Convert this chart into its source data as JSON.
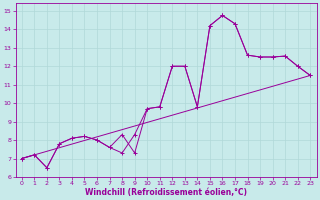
{
  "xlabel": "Windchill (Refroidissement éolien,°C)",
  "bg_color": "#c8eaea",
  "grid_color": "#b0d8d8",
  "line_color": "#990099",
  "xlim": [
    -0.5,
    23.5
  ],
  "ylim": [
    6,
    15.4
  ],
  "xticks": [
    0,
    1,
    2,
    3,
    4,
    5,
    6,
    7,
    8,
    9,
    10,
    11,
    12,
    13,
    14,
    15,
    16,
    17,
    18,
    19,
    20,
    21,
    22,
    23
  ],
  "yticks": [
    6,
    7,
    8,
    9,
    10,
    11,
    12,
    13,
    14,
    15
  ],
  "line1_x": [
    0,
    1,
    2,
    3,
    4,
    5,
    6,
    7,
    8,
    9,
    10,
    11,
    12,
    13,
    14,
    15,
    16,
    17,
    18,
    19,
    20,
    21,
    22,
    23
  ],
  "line1_y": [
    7.0,
    7.2,
    6.5,
    7.8,
    8.1,
    8.2,
    8.0,
    7.6,
    7.3,
    8.3,
    9.7,
    9.8,
    12.0,
    12.0,
    9.8,
    14.2,
    14.75,
    14.3,
    12.6,
    12.5,
    12.5,
    12.55,
    12.0,
    11.5
  ],
  "line2_x": [
    0,
    1,
    2,
    3,
    4,
    5,
    6,
    7,
    8,
    9,
    10,
    11,
    12,
    13,
    14,
    15,
    16,
    17,
    18,
    19,
    20,
    21,
    22,
    23
  ],
  "line2_y": [
    7.0,
    7.2,
    6.5,
    7.8,
    8.1,
    8.2,
    8.0,
    7.6,
    8.3,
    7.3,
    9.7,
    9.8,
    12.0,
    12.0,
    9.8,
    14.2,
    14.75,
    14.3,
    12.6,
    12.5,
    12.5,
    12.55,
    12.0,
    11.5
  ],
  "line3_x": [
    0,
    23
  ],
  "line3_y": [
    7.0,
    11.5
  ],
  "tick_fontsize": 4.5,
  "xlabel_fontsize": 5.5
}
